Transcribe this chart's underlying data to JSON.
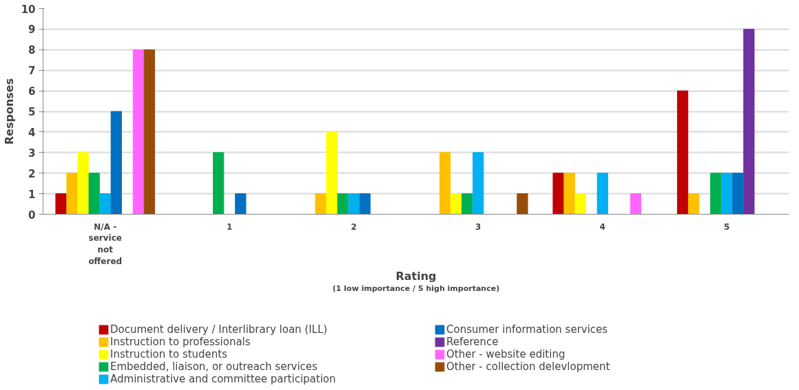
{
  "chart_data": {
    "type": "bar",
    "xlabel": "Rating",
    "ylabel": "Responses",
    "annotations": [
      "(1 low importance / 5 high importance)"
    ],
    "categories": [
      "N/A - service not offered",
      "1",
      "2",
      "3",
      "4",
      "5"
    ],
    "series": [
      {
        "name": "Document delivery / Interlibrary loan (ILL)",
        "color": "#c00000",
        "values": [
          1,
          0,
          0,
          0,
          2,
          6
        ]
      },
      {
        "name": "Instruction to professionals",
        "color": "#ffc000",
        "values": [
          2,
          0,
          1,
          3,
          2,
          1
        ]
      },
      {
        "name": "Instruction to students",
        "color": "#ffff00",
        "values": [
          3,
          0,
          4,
          1,
          1,
          0
        ]
      },
      {
        "name": "Embedded, liaison, or outreach services",
        "color": "#00b050",
        "values": [
          2,
          3,
          1,
          1,
          0,
          2
        ]
      },
      {
        "name": "Administrative and committee participation",
        "color": "#00b0f0",
        "values": [
          1,
          0,
          1,
          3,
          2,
          2
        ]
      },
      {
        "name": "Consumer information services",
        "color": "#0070c0",
        "values": [
          5,
          1,
          1,
          0,
          0,
          2
        ]
      },
      {
        "name": "Reference",
        "color": "#7030a0",
        "values": [
          0,
          0,
          0,
          0,
          0,
          9
        ]
      },
      {
        "name": "Other - website editing",
        "color": "#ff66ff",
        "values": [
          8,
          0,
          0,
          0,
          1,
          0
        ]
      },
      {
        "name": "Other - collection delevlopment",
        "color": "#994c0a",
        "values": [
          8,
          0,
          0,
          1,
          0,
          0
        ]
      }
    ],
    "ylim": [
      0,
      10
    ],
    "yticks": [
      0,
      1,
      2,
      3,
      4,
      5,
      6,
      7,
      8,
      9,
      10
    ],
    "grid": "y",
    "legend": "bottom"
  }
}
